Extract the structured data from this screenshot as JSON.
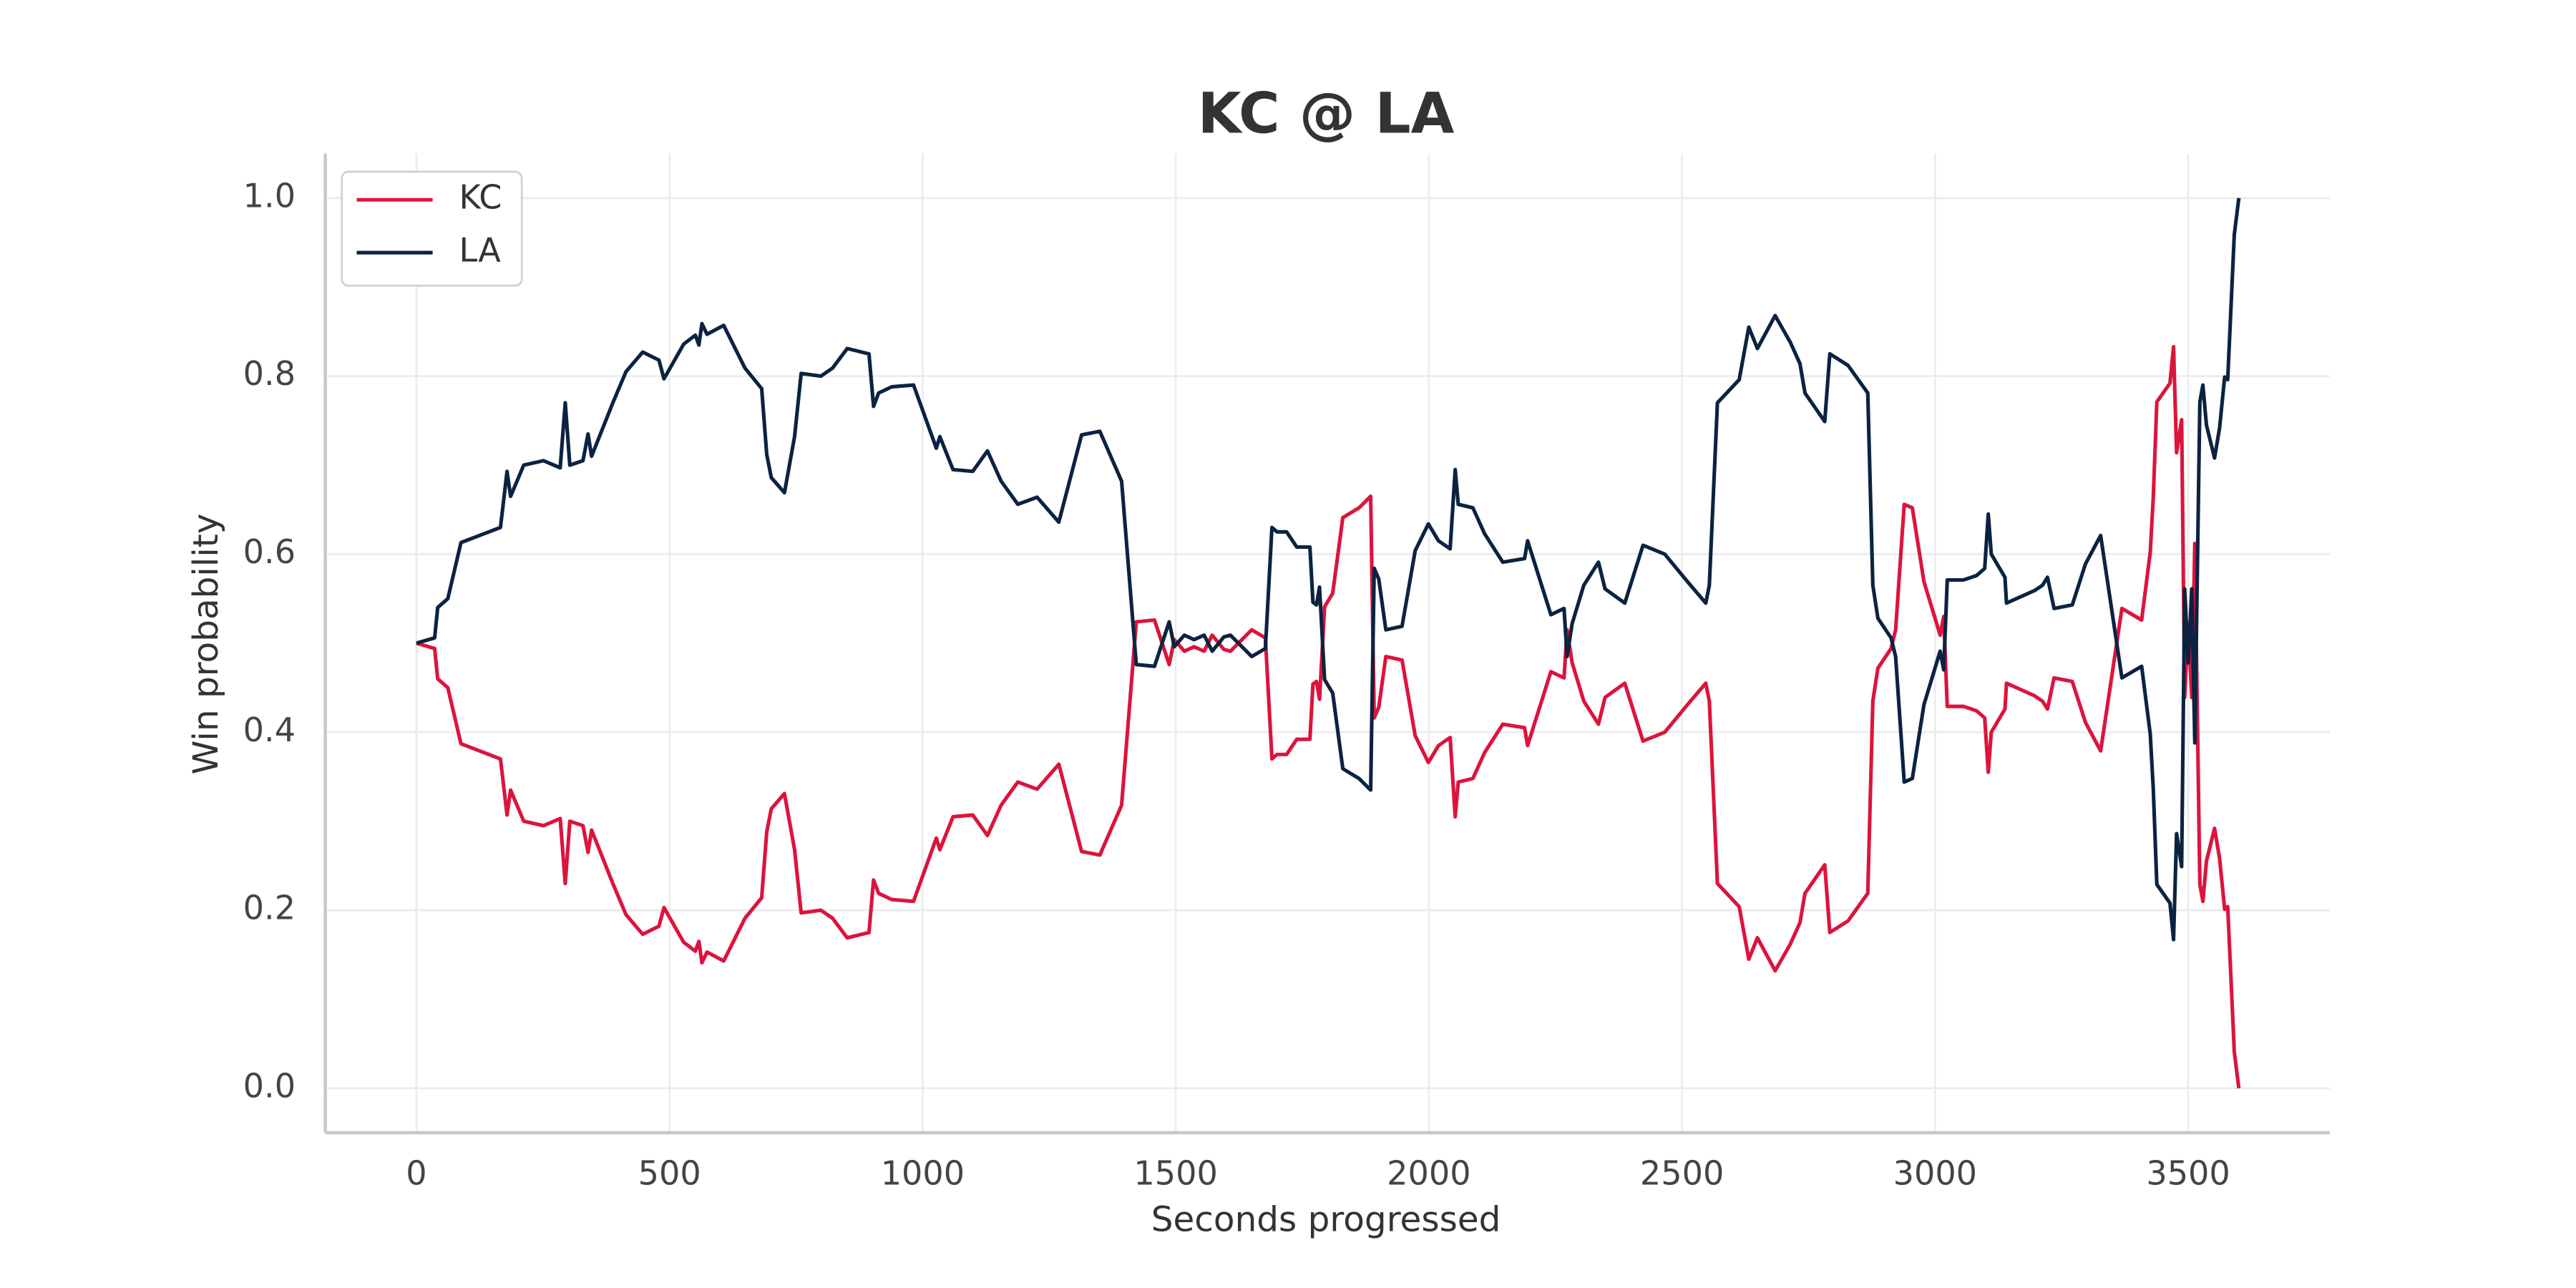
{
  "chart_data": {
    "type": "line",
    "title": "KC @ LA",
    "xlabel": "Seconds progressed",
    "ylabel": "Win probability",
    "x": [
      0,
      36,
      42,
      62,
      88,
      166,
      179,
      186,
      212,
      251,
      284,
      294,
      303,
      329,
      339,
      346,
      388,
      414,
      447,
      479,
      489,
      528,
      551,
      558,
      564,
      574,
      607,
      649,
      682,
      692,
      701,
      727,
      747,
      760,
      799,
      822,
      851,
      894,
      903,
      913,
      939,
      982,
      1027,
      1034,
      1060,
      1099,
      1128,
      1155,
      1188,
      1226,
      1269,
      1314,
      1350,
      1393,
      1422,
      1458,
      1487,
      1497,
      1517,
      1536,
      1556,
      1572,
      1595,
      1608,
      1650,
      1677,
      1690,
      1700,
      1719,
      1739,
      1765,
      1771,
      1778,
      1784,
      1794,
      1810,
      1830,
      1853,
      1862,
      1885,
      1892,
      1901,
      1915,
      1947,
      1973,
      1999,
      2019,
      2042,
      2052,
      2058,
      2087,
      2110,
      2146,
      2189,
      2195,
      2241,
      2267,
      2273,
      2283,
      2306,
      2335,
      2348,
      2387,
      2423,
      2466,
      2511,
      2547,
      2554,
      2570,
      2613,
      2632,
      2649,
      2684,
      2714,
      2733,
      2743,
      2782,
      2792,
      2828,
      2867,
      2877,
      2887,
      2913,
      2922,
      2939,
      2955,
      2978,
      3010,
      3017,
      3024,
      3056,
      3082,
      3098,
      3105,
      3111,
      3138,
      3141,
      3196,
      3212,
      3222,
      3235,
      3271,
      3297,
      3327,
      3369,
      3408,
      3425,
      3431,
      3438,
      3464,
      3471,
      3477,
      3487,
      3493,
      3500,
      3507,
      3513,
      3523,
      3529,
      3536,
      3552,
      3562,
      3572,
      3578,
      3591,
      3600
    ],
    "series": [
      {
        "name": "KC",
        "color": "#dc143c",
        "values": [
          0.5,
          0.494,
          0.46,
          0.45,
          0.387,
          0.37,
          0.307,
          0.335,
          0.3,
          0.295,
          0.303,
          0.23,
          0.3,
          0.295,
          0.265,
          0.29,
          0.23,
          0.195,
          0.173,
          0.182,
          0.203,
          0.164,
          0.154,
          0.165,
          0.141,
          0.153,
          0.143,
          0.191,
          0.214,
          0.288,
          0.314,
          0.331,
          0.268,
          0.197,
          0.2,
          0.191,
          0.169,
          0.175,
          0.234,
          0.219,
          0.212,
          0.21,
          0.281,
          0.268,
          0.305,
          0.307,
          0.284,
          0.318,
          0.344,
          0.336,
          0.364,
          0.266,
          0.262,
          0.318,
          0.524,
          0.526,
          0.476,
          0.504,
          0.491,
          0.496,
          0.491,
          0.509,
          0.493,
          0.491,
          0.515,
          0.506,
          0.37,
          0.375,
          0.375,
          0.392,
          0.392,
          0.454,
          0.457,
          0.437,
          0.541,
          0.556,
          0.641,
          0.649,
          0.652,
          0.665,
          0.416,
          0.428,
          0.485,
          0.481,
          0.396,
          0.366,
          0.385,
          0.394,
          0.305,
          0.344,
          0.348,
          0.377,
          0.409,
          0.405,
          0.385,
          0.468,
          0.461,
          0.515,
          0.478,
          0.435,
          0.409,
          0.439,
          0.455,
          0.39,
          0.4,
          0.431,
          0.455,
          0.435,
          0.23,
          0.204,
          0.145,
          0.169,
          0.132,
          0.162,
          0.186,
          0.219,
          0.251,
          0.175,
          0.188,
          0.219,
          0.435,
          0.472,
          0.494,
          0.515,
          0.656,
          0.652,
          0.569,
          0.509,
          0.53,
          0.429,
          0.429,
          0.424,
          0.416,
          0.355,
          0.4,
          0.426,
          0.455,
          0.441,
          0.435,
          0.426,
          0.461,
          0.457,
          0.411,
          0.379,
          0.539,
          0.526,
          0.602,
          0.664,
          0.771,
          0.792,
          0.833,
          0.714,
          0.751,
          0.439,
          0.522,
          0.439,
          0.612,
          0.229,
          0.21,
          0.255,
          0.292,
          0.258,
          0.201,
          0.204,
          0.041,
          0
        ]
      },
      {
        "name": "LA",
        "color": "#0b2341",
        "values": [
          0.5,
          0.506,
          0.54,
          0.55,
          0.613,
          0.63,
          0.693,
          0.665,
          0.7,
          0.705,
          0.697,
          0.77,
          0.7,
          0.705,
          0.735,
          0.71,
          0.77,
          0.805,
          0.827,
          0.818,
          0.797,
          0.836,
          0.846,
          0.835,
          0.859,
          0.847,
          0.857,
          0.809,
          0.786,
          0.712,
          0.686,
          0.669,
          0.732,
          0.803,
          0.8,
          0.809,
          0.831,
          0.825,
          0.766,
          0.781,
          0.788,
          0.79,
          0.719,
          0.732,
          0.695,
          0.693,
          0.716,
          0.682,
          0.656,
          0.664,
          0.636,
          0.734,
          0.738,
          0.682,
          0.476,
          0.474,
          0.524,
          0.496,
          0.509,
          0.504,
          0.509,
          0.491,
          0.507,
          0.509,
          0.485,
          0.494,
          0.63,
          0.625,
          0.625,
          0.608,
          0.608,
          0.546,
          0.543,
          0.563,
          0.459,
          0.444,
          0.359,
          0.351,
          0.348,
          0.335,
          0.584,
          0.572,
          0.515,
          0.519,
          0.604,
          0.634,
          0.615,
          0.606,
          0.695,
          0.656,
          0.652,
          0.623,
          0.591,
          0.595,
          0.615,
          0.532,
          0.539,
          0.485,
          0.522,
          0.565,
          0.591,
          0.561,
          0.545,
          0.61,
          0.6,
          0.569,
          0.545,
          0.565,
          0.77,
          0.796,
          0.855,
          0.831,
          0.868,
          0.838,
          0.814,
          0.781,
          0.749,
          0.825,
          0.812,
          0.781,
          0.565,
          0.528,
          0.506,
          0.485,
          0.344,
          0.348,
          0.431,
          0.491,
          0.47,
          0.571,
          0.571,
          0.576,
          0.584,
          0.645,
          0.6,
          0.574,
          0.545,
          0.559,
          0.565,
          0.574,
          0.539,
          0.543,
          0.589,
          0.621,
          0.461,
          0.474,
          0.398,
          0.336,
          0.229,
          0.208,
          0.167,
          0.286,
          0.249,
          0.561,
          0.478,
          0.561,
          0.388,
          0.771,
          0.79,
          0.745,
          0.708,
          0.742,
          0.799,
          0.796,
          0.959,
          1.0
        ]
      }
    ],
    "xlim": [
      -180,
      3780
    ],
    "xticks": [
      0,
      500,
      1000,
      1500,
      2000,
      2500,
      3000,
      3500
    ],
    "ylim": [
      -0.05,
      1.05
    ],
    "yticks": [
      {
        "value": 0,
        "label": "0.0"
      },
      0.2,
      0.4,
      0.6,
      0.8,
      {
        "value": 1,
        "label": "1.0"
      }
    ],
    "grid": true,
    "legend": "upper left"
  }
}
